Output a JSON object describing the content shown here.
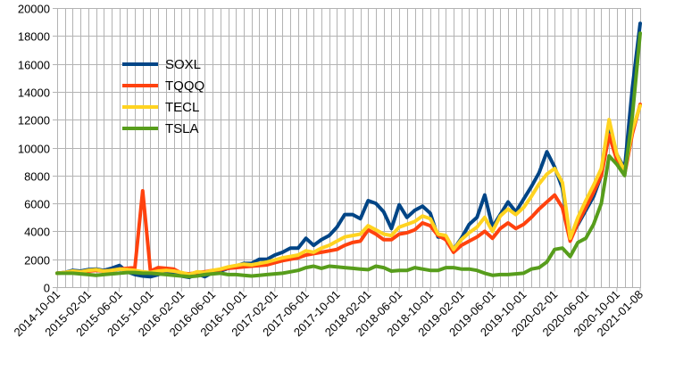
{
  "chart_data": {
    "type": "line",
    "title": "",
    "xlabel": "",
    "ylabel": "",
    "ylim": [
      0,
      20000
    ],
    "yticks": [
      0,
      2000,
      4000,
      6000,
      8000,
      10000,
      12000,
      14000,
      16000,
      18000,
      20000
    ],
    "ytick_labels": [
      "0",
      "2000",
      "4000",
      "6000",
      "8000",
      "10000",
      "12000",
      "14000",
      "16000",
      "18000",
      "20000"
    ],
    "x_tick_labels": [
      "2014-10-01",
      "2015-02-01",
      "2015-06-01",
      "2015-10-01",
      "2016-02-01",
      "2016-06-01",
      "2016-10-01",
      "2017-02-01",
      "2017-06-01",
      "2017-10-01",
      "2018-02-01",
      "2018-06-01",
      "2018-10-01",
      "2019-02-01",
      "2019-06-01",
      "2019-10-01",
      "2020-02-01",
      "2020-06-01",
      "2020-10-01",
      "2021-01-08"
    ],
    "x_tick_positions": [
      0,
      4,
      8,
      12,
      16,
      20,
      24,
      28,
      32,
      36,
      40,
      44,
      48,
      52,
      56,
      60,
      64,
      68,
      72,
      75
    ],
    "grid": true,
    "legend_placement": "upper-left",
    "series": [
      {
        "name": "SOXL",
        "color": "#004586",
        "values": [
          1000,
          1050,
          1200,
          1150,
          1250,
          1300,
          1200,
          1350,
          1550,
          1100,
          900,
          800,
          750,
          900,
          1100,
          950,
          800,
          700,
          950,
          750,
          1050,
          1150,
          1350,
          1500,
          1700,
          1700,
          2000,
          2000,
          2300,
          2500,
          2800,
          2800,
          3500,
          3000,
          3400,
          3700,
          4300,
          5200,
          5200,
          4900,
          6200,
          6000,
          5400,
          4200,
          5900,
          5000,
          5500,
          5800,
          5300,
          3600,
          3600,
          2700,
          3500,
          4500,
          5000,
          6600,
          4300,
          5200,
          6100,
          5400,
          6300,
          7200,
          8200,
          9700,
          8600,
          7100,
          3500,
          4500,
          5500,
          6500,
          8000,
          11400,
          9500,
          8500,
          14300,
          18900
        ]
      },
      {
        "name": "TQQQ",
        "color": "#ff420e",
        "values": [
          1000,
          1050,
          1100,
          1050,
          1150,
          1200,
          1150,
          1200,
          1300,
          1350,
          1400,
          6900,
          1150,
          1400,
          1350,
          1300,
          1000,
          950,
          1050,
          1100,
          1200,
          1250,
          1350,
          1400,
          1450,
          1500,
          1550,
          1600,
          1750,
          1900,
          2000,
          2100,
          2300,
          2400,
          2500,
          2600,
          2700,
          3000,
          3200,
          3300,
          4100,
          3800,
          3400,
          3400,
          3800,
          3900,
          4100,
          4600,
          4400,
          3700,
          3400,
          2500,
          3000,
          3300,
          3600,
          4000,
          3500,
          4200,
          4600,
          4200,
          4500,
          5000,
          5600,
          6100,
          6600,
          5700,
          3300,
          4600,
          5700,
          6800,
          8000,
          10900,
          9100,
          8100,
          11000,
          13100
        ]
      },
      {
        "name": "TECL",
        "color": "#ffd320",
        "values": [
          1000,
          1050,
          1150,
          1100,
          1200,
          1250,
          1150,
          1200,
          1300,
          1250,
          1200,
          1100,
          1050,
          1150,
          1200,
          1150,
          1050,
          900,
          1100,
          1050,
          1200,
          1300,
          1450,
          1550,
          1650,
          1600,
          1700,
          1800,
          1950,
          2100,
          2200,
          2300,
          2600,
          2500,
          2800,
          3000,
          3300,
          3600,
          3700,
          3800,
          4400,
          4100,
          3800,
          3700,
          4300,
          4500,
          4700,
          5100,
          4900,
          3800,
          3700,
          2700,
          3400,
          3900,
          4300,
          5000,
          4000,
          5100,
          5600,
          5200,
          5700,
          6500,
          7400,
          8100,
          8500,
          7500,
          3500,
          5000,
          6200,
          7300,
          8500,
          12000,
          9500,
          8300,
          11300,
          13000
        ]
      },
      {
        "name": "TSLA",
        "color": "#579d1c",
        "values": [
          1000,
          1000,
          1000,
          950,
          900,
          850,
          900,
          950,
          1000,
          1050,
          1050,
          1000,
          1000,
          950,
          900,
          850,
          800,
          750,
          800,
          900,
          950,
          1000,
          900,
          900,
          850,
          800,
          850,
          900,
          950,
          1000,
          1100,
          1200,
          1400,
          1500,
          1350,
          1500,
          1450,
          1400,
          1350,
          1300,
          1250,
          1500,
          1400,
          1150,
          1200,
          1200,
          1400,
          1300,
          1200,
          1200,
          1400,
          1400,
          1300,
          1300,
          1200,
          1000,
          850,
          900,
          900,
          950,
          1000,
          1300,
          1400,
          1800,
          2700,
          2800,
          2200,
          3200,
          3500,
          4500,
          6000,
          9400,
          8800,
          8000,
          12300,
          18200
        ]
      }
    ]
  }
}
